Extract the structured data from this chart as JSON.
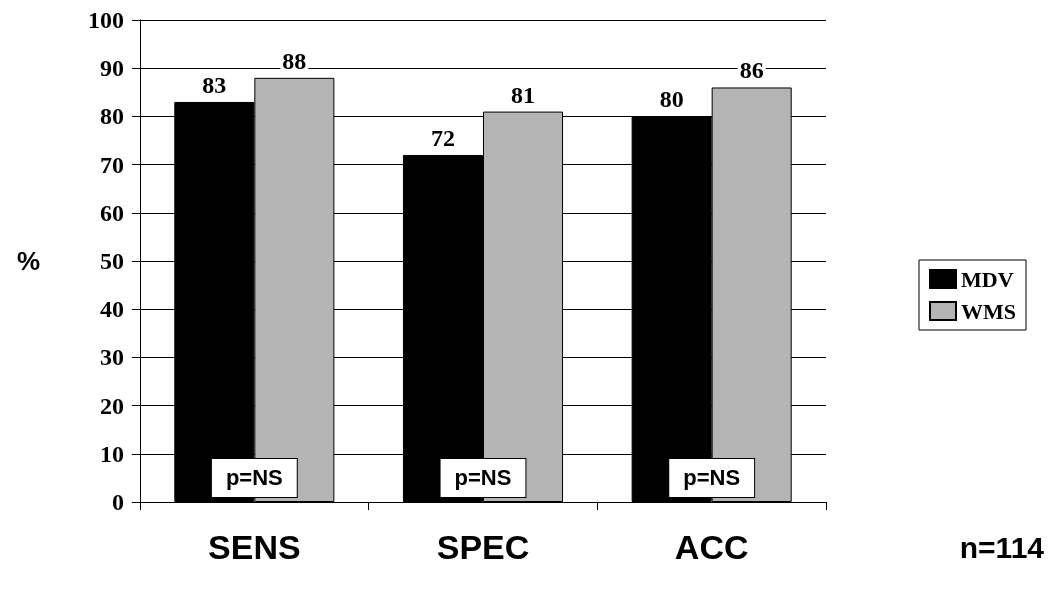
{
  "chart_data": {
    "type": "bar",
    "ylabel": "%",
    "categories": [
      "SENS",
      "SPEC",
      "ACC"
    ],
    "series": [
      {
        "name": "MDV",
        "color": "#000000",
        "values": [
          83,
          72,
          80
        ]
      },
      {
        "name": "WMS",
        "color": "#b4b4b4",
        "values": [
          88,
          81,
          86
        ]
      }
    ],
    "ylim": [
      0,
      100
    ],
    "yticks": [
      0,
      10,
      20,
      30,
      40,
      50,
      60,
      70,
      80,
      90,
      100
    ],
    "grid": "y",
    "legend": "right",
    "data_labels": true,
    "annotations": [
      {
        "text": "p=NS",
        "x": "SENS",
        "y": 5
      },
      {
        "text": "p=NS",
        "x": "SPEC",
        "y": 5
      },
      {
        "text": "p=NS",
        "x": "ACC",
        "y": 5
      },
      "n=114"
    ]
  }
}
